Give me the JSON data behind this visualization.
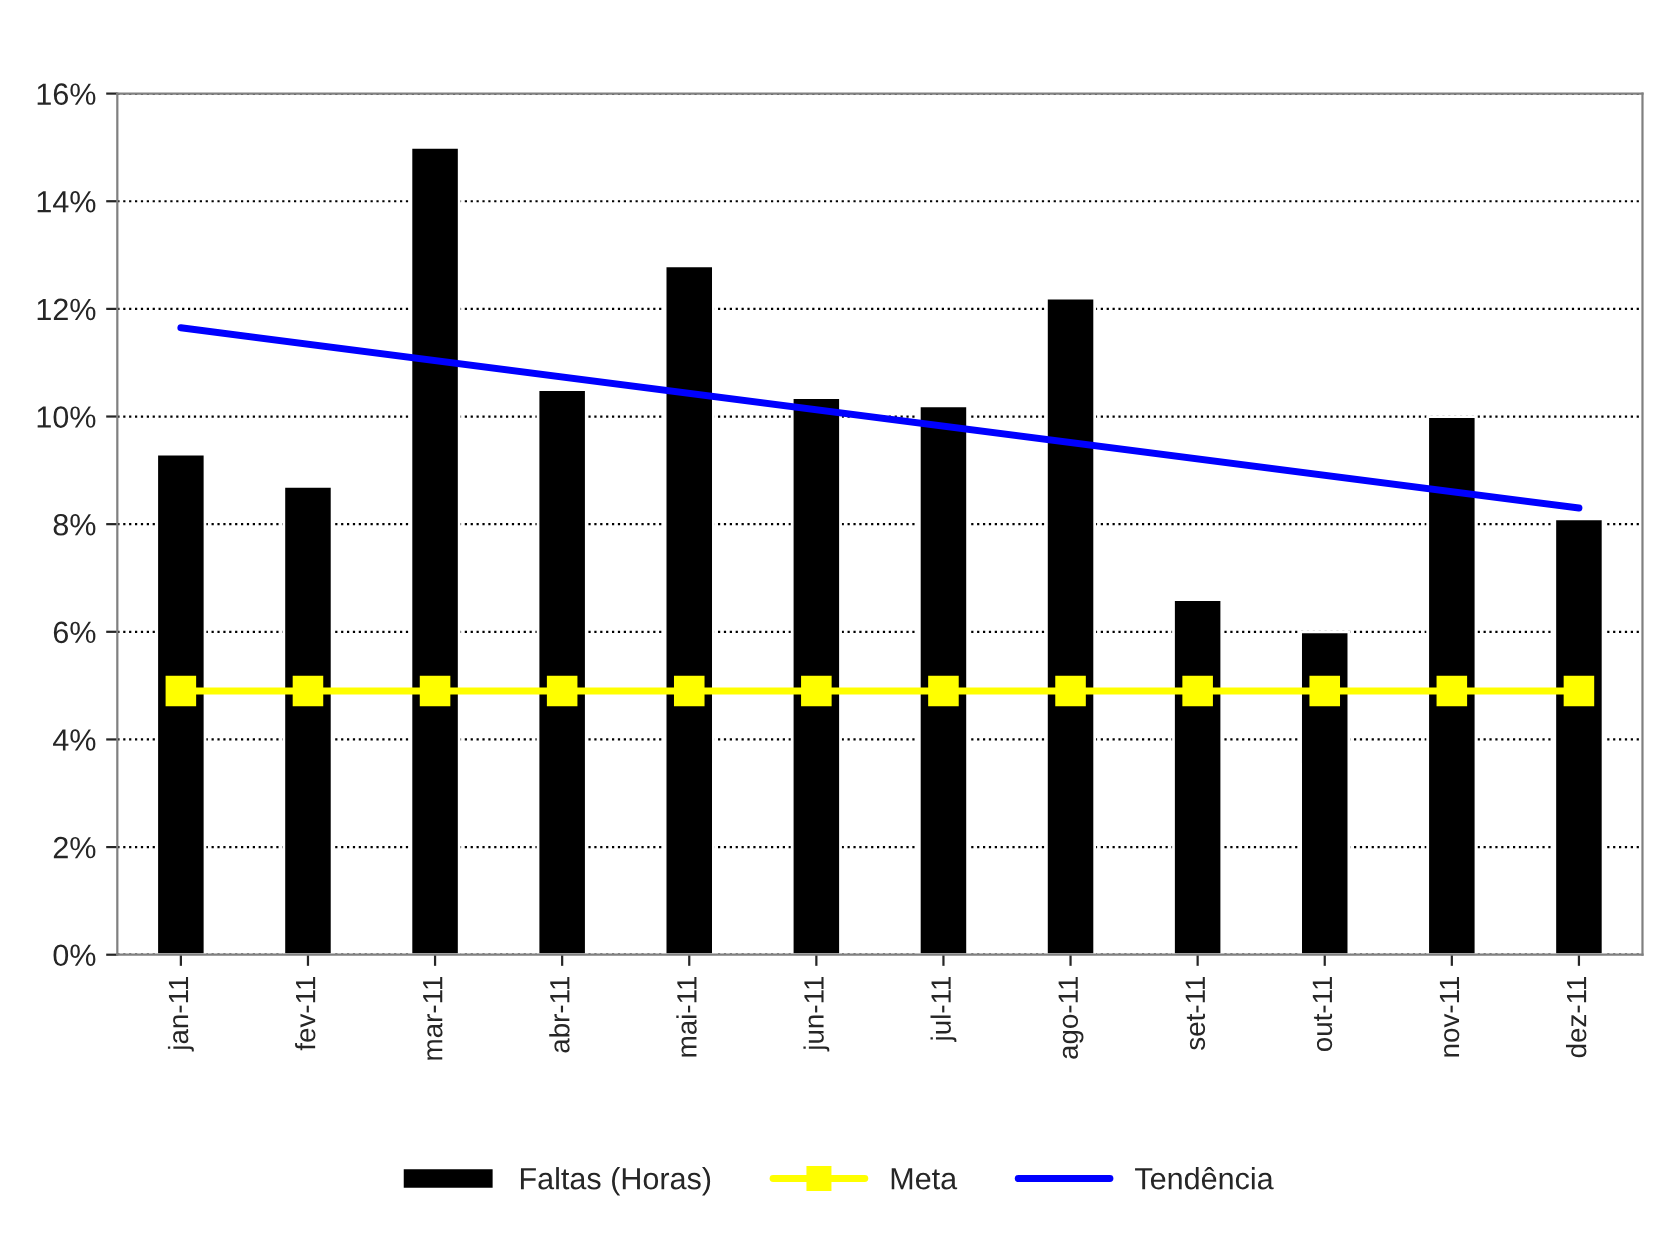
{
  "chart_data": {
    "type": "bar",
    "categories": [
      "jan-11",
      "fev-11",
      "mar-11",
      "abr-11",
      "mai-11",
      "jun-11",
      "jul-11",
      "ago-11",
      "set-11",
      "out-11",
      "nov-11",
      "dez-11"
    ],
    "series": [
      {
        "name": "Faltas (Horas)",
        "color": "#000000",
        "values": [
          9.3,
          8.7,
          15.0,
          10.5,
          12.8,
          10.35,
          10.2,
          12.2,
          6.6,
          6.0,
          10.0,
          8.1
        ]
      },
      {
        "name": "Meta",
        "type": "line",
        "color": "#ffff00",
        "marker": "square",
        "values": [
          4.9,
          4.9,
          4.9,
          4.9,
          4.9,
          4.9,
          4.9,
          4.9,
          4.9,
          4.9,
          4.9,
          4.9
        ]
      },
      {
        "name": "Tendência",
        "type": "line",
        "color": "#0000ff",
        "marker": "none",
        "x": [
          "jan-11",
          "dez-11"
        ],
        "values": [
          11.65,
          8.3
        ]
      }
    ],
    "ylim": [
      0,
      16
    ],
    "yticks": [
      {
        "value": 0,
        "label": "0%"
      },
      {
        "value": 2,
        "label": "2%"
      },
      {
        "value": 4,
        "label": "4%"
      },
      {
        "value": 6,
        "label": "6%"
      },
      {
        "value": 8,
        "label": "8%"
      },
      {
        "value": 10,
        "label": "10%"
      },
      {
        "value": 12,
        "label": "12%"
      },
      {
        "value": 14,
        "label": "14%"
      },
      {
        "value": 16,
        "label": "16%"
      }
    ],
    "grid": "y",
    "legend": "bottom"
  }
}
